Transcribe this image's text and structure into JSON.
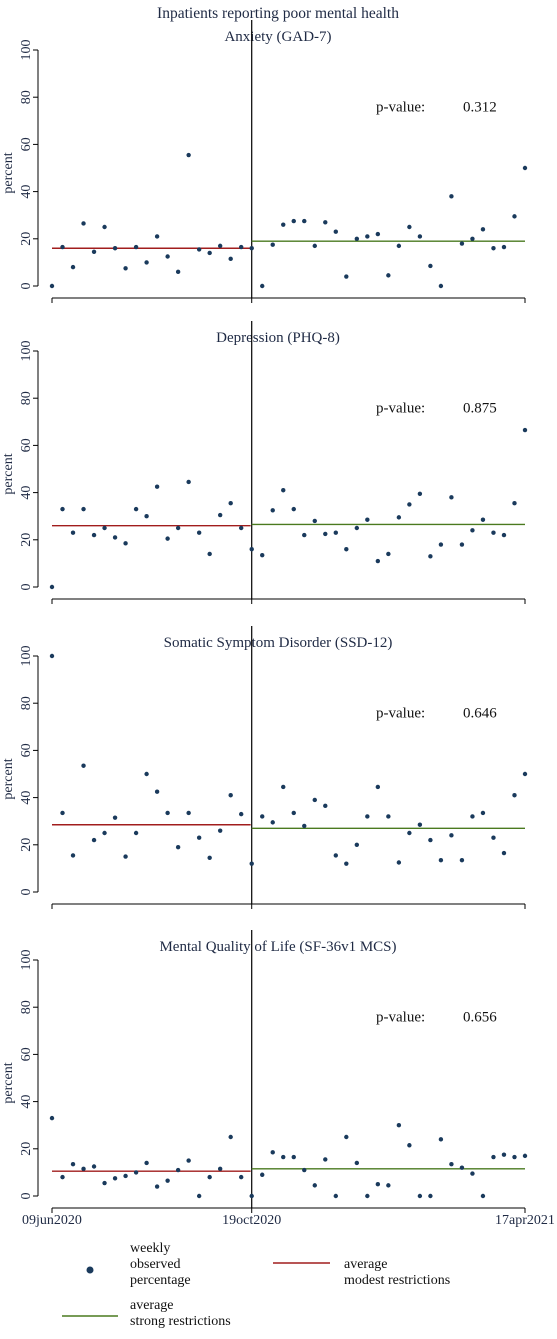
{
  "title": "Inpatients reporting poor mental health",
  "x_ticks": [
    "09jun2020",
    "19oct2020",
    "17apr2021"
  ],
  "colors": {
    "points": "#1a3a5c",
    "modest_line": "#a11d1d",
    "strong_line": "#4a7a1f",
    "axes": "#000000"
  },
  "legend": {
    "items": [
      {
        "label": "weekly observed percentage",
        "lines": [
          "weekly",
          "observed",
          "percentage"
        ],
        "symbol": "dot"
      },
      {
        "label": "average modest restrictions",
        "lines": [
          "average",
          "modest restrictions"
        ],
        "symbol": "red-line"
      },
      {
        "label": "average strong restrictions",
        "lines": [
          "average",
          "strong restrictions"
        ],
        "symbol": "green-line"
      }
    ]
  },
  "chart_data": [
    {
      "type": "scatter",
      "title": "Anxiety (GAD-7)",
      "ylabel": "percent",
      "ylim": [
        0,
        100
      ],
      "yticks": [
        0,
        20,
        40,
        60,
        80,
        100
      ],
      "p_label": "p-value:",
      "p_value": "0.312",
      "x": [
        0,
        1,
        2,
        3,
        4,
        5,
        6,
        7,
        8,
        9,
        10,
        11,
        12,
        13,
        14,
        15,
        16,
        17,
        18,
        19,
        20,
        21,
        22,
        23,
        24,
        25,
        26,
        27,
        28,
        29,
        30,
        31,
        32,
        33,
        34,
        35,
        36,
        37,
        38,
        39,
        40,
        41,
        42,
        43,
        44,
        45
      ],
      "values": [
        0,
        16.5,
        8,
        26.5,
        14.5,
        25,
        16,
        7.5,
        16.5,
        10,
        21,
        12.5,
        6,
        55.5,
        15.5,
        14,
        17,
        11.5,
        16.5,
        16,
        0,
        17.5,
        26,
        27.5,
        27.5,
        17,
        27,
        23,
        4,
        20,
        21,
        22,
        4.5,
        17,
        25,
        21,
        8.5,
        0,
        38,
        18,
        20,
        24,
        16,
        16.5,
        29.5,
        50
      ],
      "breakpoint_x": 19,
      "x_end": 45,
      "avg_modest": 16,
      "avg_strong": 19
    },
    {
      "type": "scatter",
      "title": "Depression (PHQ-8)",
      "ylabel": "percent",
      "ylim": [
        0,
        100
      ],
      "yticks": [
        0,
        20,
        40,
        60,
        80,
        100
      ],
      "p_label": "p-value:",
      "p_value": "0.875",
      "x": [
        0,
        1,
        2,
        3,
        4,
        5,
        6,
        7,
        8,
        9,
        10,
        11,
        12,
        13,
        14,
        15,
        16,
        17,
        18,
        19,
        20,
        21,
        22,
        23,
        24,
        25,
        26,
        27,
        28,
        29,
        30,
        31,
        32,
        33,
        34,
        35,
        36,
        37,
        38,
        39,
        40,
        41,
        42,
        43,
        44,
        45
      ],
      "values": [
        0,
        33,
        23,
        33,
        22,
        25,
        21,
        18.5,
        33,
        30,
        42.5,
        20.5,
        25,
        44.5,
        23,
        14,
        30.5,
        35.5,
        25,
        16,
        13.5,
        32.5,
        41,
        33,
        22,
        28,
        22.5,
        23,
        16,
        25,
        28.5,
        11,
        14,
        29.5,
        35,
        39.5,
        13,
        18,
        38,
        18,
        24,
        28.5,
        23,
        22,
        35.5,
        66.5
      ],
      "breakpoint_x": 19,
      "x_end": 45,
      "avg_modest": 26,
      "avg_strong": 26.5
    },
    {
      "type": "scatter",
      "title": "Somatic Symptom Disorder (SSD-12)",
      "ylabel": "percent",
      "ylim": [
        0,
        100
      ],
      "yticks": [
        0,
        20,
        40,
        60,
        80,
        100
      ],
      "p_label": "p-value:",
      "p_value": "0.646",
      "x": [
        0,
        1,
        2,
        3,
        4,
        5,
        6,
        7,
        8,
        9,
        10,
        11,
        12,
        13,
        14,
        15,
        16,
        17,
        18,
        19,
        20,
        21,
        22,
        23,
        24,
        25,
        26,
        27,
        28,
        29,
        30,
        31,
        32,
        33,
        34,
        35,
        36,
        37,
        38,
        39,
        40,
        41,
        42,
        43,
        44,
        45
      ],
      "values": [
        100,
        33.5,
        15.5,
        53.5,
        22,
        25,
        31.5,
        15,
        25,
        50,
        42.5,
        33.5,
        19,
        33.5,
        23,
        14.5,
        26,
        41,
        33,
        12,
        32,
        29.5,
        44.5,
        33.5,
        28,
        39,
        36.5,
        15.5,
        12,
        20,
        32,
        44.5,
        32,
        12.5,
        25,
        28.5,
        22,
        13.5,
        24,
        13.5,
        32,
        33.5,
        23,
        16.5,
        41,
        50
      ],
      "breakpoint_x": 19,
      "x_end": 45,
      "avg_modest": 28.5,
      "avg_strong": 27
    },
    {
      "type": "scatter",
      "title": "Mental Quality of Life (SF-36v1 MCS)",
      "ylabel": "percent",
      "ylim": [
        0,
        100
      ],
      "yticks": [
        0,
        20,
        40,
        60,
        80,
        100
      ],
      "p_label": "p-value:",
      "p_value": "0.656",
      "x": [
        0,
        1,
        2,
        3,
        4,
        5,
        6,
        7,
        8,
        9,
        10,
        11,
        12,
        13,
        14,
        15,
        16,
        17,
        18,
        19,
        20,
        21,
        22,
        23,
        24,
        25,
        26,
        27,
        28,
        29,
        30,
        31,
        32,
        33,
        34,
        35,
        36,
        37,
        38,
        39,
        40,
        41,
        42,
        43,
        44,
        45
      ],
      "values": [
        33,
        8,
        13.5,
        11.5,
        12.5,
        5.5,
        7.5,
        8.5,
        10,
        14,
        4,
        6.5,
        11,
        15,
        0,
        8,
        11.5,
        25,
        8,
        0,
        9,
        18.5,
        16.5,
        16.5,
        11,
        4.5,
        15.5,
        0,
        25,
        14,
        0,
        5,
        4.5,
        30,
        21.5,
        0,
        0,
        24,
        13.5,
        12,
        9.5,
        0,
        16.5,
        17.5,
        16.5,
        17
      ],
      "breakpoint_x": 19,
      "x_end": 45,
      "avg_modest": 10.5,
      "avg_strong": 11.5
    }
  ]
}
